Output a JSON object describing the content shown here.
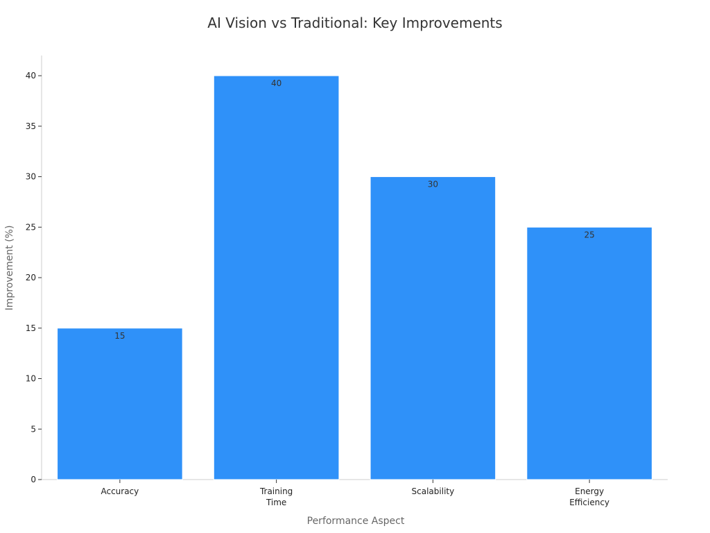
{
  "chart_data": {
    "type": "bar",
    "title": "AI Vision vs Traditional: Key Improvements",
    "xlabel": "Performance Aspect",
    "ylabel": "Improvement (%)",
    "categories": [
      [
        "Accuracy"
      ],
      [
        "Training",
        "Time"
      ],
      [
        "Scalability"
      ],
      [
        "Energy",
        "Efficiency"
      ]
    ],
    "values": [
      15,
      40,
      30,
      25
    ],
    "ylim": [
      0,
      42
    ],
    "yticks": [
      0,
      5,
      10,
      15,
      20,
      25,
      30,
      35,
      40
    ],
    "bar_color": "#2f91f9",
    "grid": false,
    "legend": "none",
    "data_labels": true
  }
}
